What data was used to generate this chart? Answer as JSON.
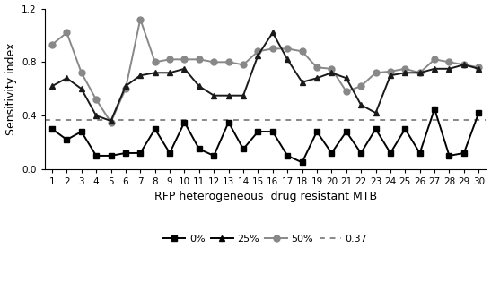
{
  "x": [
    1,
    2,
    3,
    4,
    5,
    6,
    7,
    8,
    9,
    10,
    11,
    12,
    13,
    14,
    15,
    16,
    17,
    18,
    19,
    20,
    21,
    22,
    23,
    24,
    25,
    26,
    27,
    28,
    29,
    30
  ],
  "series_0pct": [
    0.3,
    0.22,
    0.28,
    0.1,
    0.1,
    0.12,
    0.12,
    0.3,
    0.12,
    0.35,
    0.15,
    0.1,
    0.35,
    0.15,
    0.28,
    0.28,
    0.1,
    0.05,
    0.28,
    0.12,
    0.28,
    0.12,
    0.3,
    0.12,
    0.3,
    0.12,
    0.45,
    0.1,
    0.12,
    0.42
  ],
  "series_25pct": [
    0.62,
    0.68,
    0.6,
    0.4,
    0.36,
    0.62,
    0.7,
    0.72,
    0.72,
    0.75,
    0.62,
    0.55,
    0.55,
    0.55,
    0.85,
    1.02,
    0.82,
    0.65,
    0.68,
    0.72,
    0.68,
    0.48,
    0.42,
    0.7,
    0.72,
    0.72,
    0.75,
    0.75,
    0.78,
    0.75
  ],
  "series_50pct": [
    0.93,
    1.02,
    0.72,
    0.52,
    0.35,
    0.6,
    1.12,
    0.8,
    0.82,
    0.82,
    0.82,
    0.8,
    0.8,
    0.78,
    0.88,
    0.9,
    0.9,
    0.88,
    0.76,
    0.75,
    0.58,
    0.62,
    0.72,
    0.73,
    0.75,
    0.72,
    0.82,
    0.8,
    0.78,
    0.76
  ],
  "threshold": 0.37,
  "color_0pct": "#000000",
  "color_25pct": "#1a1a1a",
  "color_50pct": "#888888",
  "color_threshold": "#888888",
  "ylabel": "Sensitivity index",
  "xlabel": "RFP heterogeneous  drug resistant MTB",
  "ylim": [
    0,
    1.2
  ],
  "yticks": [
    0,
    0.4,
    0.8,
    1.2
  ],
  "xlabel_fontsize": 9,
  "ylabel_fontsize": 9,
  "tick_fontsize": 7.5,
  "legend_fontsize": 8
}
